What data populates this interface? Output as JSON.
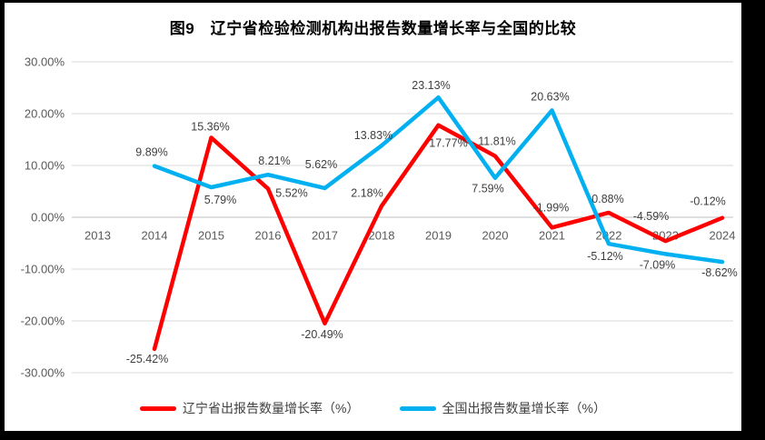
{
  "frame": {
    "background": "#000000",
    "chart_background": "#ffffff"
  },
  "chart_data": {
    "type": "line",
    "title": "图9　辽宁省检验检测机构出报告数量增长率与全国的比较",
    "categories": [
      "2013",
      "2014",
      "2015",
      "2016",
      "2017",
      "2018",
      "2019",
      "2020",
      "2021",
      "2022",
      "2023",
      "2024"
    ],
    "xlabel": "",
    "ylabel": "",
    "y_axis": {
      "min": -30,
      "max": 30,
      "step": 10,
      "tick_labels": [
        "30.00%",
        "20.00%",
        "10.00%",
        "0.00%",
        "-10.00%",
        "-20.00%",
        "-30.00%"
      ]
    },
    "grid": true,
    "legend_position": "bottom",
    "gridline_color": "#D9D9D9",
    "zero_line_color": "#C0C0C0",
    "text_color": "#595959",
    "label_color": "#3f3f3f",
    "series": [
      {
        "name": "辽宁省出报告数量增长率（%）",
        "color": "#FF0000",
        "values": [
          null,
          -25.42,
          15.36,
          5.52,
          -20.49,
          2.18,
          17.77,
          11.81,
          -1.99,
          0.88,
          -4.59,
          -0.12
        ],
        "labels": [
          null,
          "-25.42%",
          "15.36%",
          "5.52%",
          "-20.49%",
          "2.18%",
          "17.77%",
          "11.81%",
          "-1.99%",
          "0.88%",
          "-4.59%",
          "-0.12%"
        ],
        "label_offsets": [
          null,
          [
            -8,
            11
          ],
          [
            -1,
            -12
          ],
          [
            26,
            5
          ],
          [
            -3,
            12
          ],
          [
            -16,
            -14
          ],
          [
            11,
            20
          ],
          [
            2,
            -16
          ],
          [
            -1,
            -22
          ],
          [
            -1,
            -15
          ],
          [
            -16,
            -27
          ],
          [
            -16,
            -18
          ]
        ]
      },
      {
        "name": "全国出报告数量增长率（%）",
        "color": "#00B0F0",
        "values": [
          null,
          9.89,
          5.79,
          8.21,
          5.62,
          13.83,
          23.13,
          7.59,
          20.63,
          -5.12,
          -7.09,
          -8.62
        ],
        "labels": [
          null,
          "9.89%",
          "5.79%",
          "8.21%",
          "5.62%",
          "13.83%",
          "23.13%",
          "7.59%",
          "20.63%",
          "-5.12%",
          "-7.09%",
          "-8.62%"
        ],
        "label_offsets": [
          null,
          [
            -3,
            -15
          ],
          [
            10,
            14
          ],
          [
            7,
            -15
          ],
          [
            -4,
            -26
          ],
          [
            -9,
            -11
          ],
          [
            -8,
            -13
          ],
          [
            -8,
            12
          ],
          [
            -2,
            -15
          ],
          [
            -4,
            14
          ],
          [
            -9,
            12
          ],
          [
            -3,
            12
          ]
        ]
      }
    ]
  }
}
